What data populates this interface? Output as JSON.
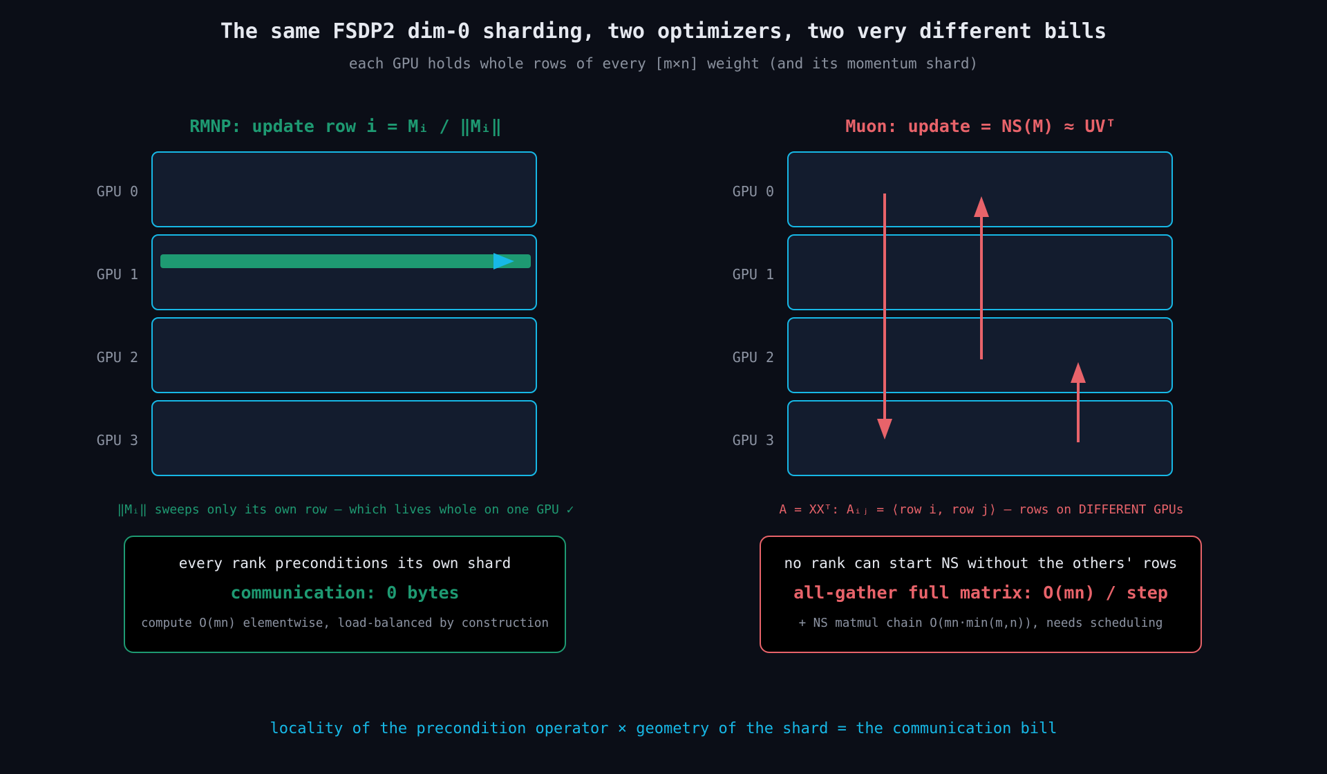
{
  "title": "The same FSDP2 dim-0 sharding, two optimizers, two very different bills",
  "subtitle": "each GPU holds whole rows of every [m×n] weight (and its momentum shard)",
  "colors": {
    "background": "#0b0e17",
    "shard_border": "#17b8e6",
    "shard_fill": "#131c2e",
    "rmnp_accent": "#1e9a72",
    "muon_accent": "#e8636a",
    "footer_text": "#17b8e6"
  },
  "rmnp": {
    "heading": "RMNP: update row i = Mᵢ / ‖Mᵢ‖",
    "gpu_labels": [
      "GPU 0",
      "GPU 1",
      "GPU 2",
      "GPU 3"
    ],
    "highlighted_row_gpu": 1,
    "note": "‖Mᵢ‖ sweeps only its own row — which lives whole on one GPU ✓",
    "box": {
      "line1": "every rank preconditions its own shard",
      "line2": "communication: 0 bytes",
      "line3": "compute O(mn) elementwise, load-balanced by construction"
    }
  },
  "muon": {
    "heading": "Muon: update = NS(M) ≈ UVᵀ",
    "gpu_labels": [
      "GPU 0",
      "GPU 1",
      "GPU 2",
      "GPU 3"
    ],
    "cross_gpu_arrows": [
      {
        "from_gpu": 0,
        "to_gpu": 3
      },
      {
        "from_gpu": 2,
        "to_gpu": 0
      },
      {
        "from_gpu": 3,
        "to_gpu": 2
      }
    ],
    "note": "A = XXᵀ: Aᵢⱼ = ⟨row i, row j⟩ — rows on DIFFERENT GPUs",
    "box": {
      "line1": "no rank can start NS without the others' rows",
      "line2": "all-gather full matrix: O(mn) / step",
      "line3": "+ NS matmul chain O(mn·min(m,n)), needs scheduling"
    }
  },
  "footer": "locality of the precondition operator × geometry of the shard = the communication bill"
}
